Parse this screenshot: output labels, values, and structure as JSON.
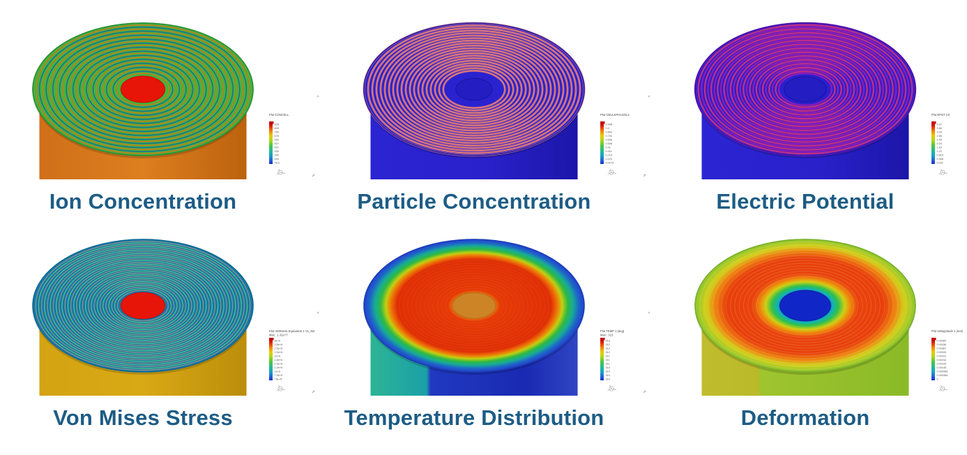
{
  "page": {
    "background": "#ffffff",
    "caption_color": "#1d5c85"
  },
  "colorbar_colors": [
    [
      0,
      "#c80000"
    ],
    [
      0.1,
      "#e83c00"
    ],
    [
      0.2,
      "#f08c00"
    ],
    [
      0.3,
      "#e8cc00"
    ],
    [
      0.42,
      "#a8d818"
    ],
    [
      0.55,
      "#48c648"
    ],
    [
      0.68,
      "#22bb92"
    ],
    [
      0.8,
      "#18a0c8"
    ],
    [
      0.9,
      "#2468d8"
    ],
    [
      1,
      "#1c2cc8"
    ]
  ],
  "panels": [
    {
      "id": "ion-concentration",
      "caption": "Ion Concentration",
      "legend": {
        "title_lines": [
          "Plot CONCELL"
        ],
        "ticks": [
          "935",
          "849",
          "764",
          "678",
          "592",
          "507",
          "421",
          "335",
          "250",
          "164",
          "78.3"
        ]
      },
      "body_stops": [
        [
          0,
          "#cf7019"
        ],
        [
          0.5,
          "#dd7e1f"
        ],
        [
          1,
          "#bc620e"
        ]
      ],
      "disc": {
        "mode": "rings",
        "base": "#45b23d",
        "rim": "#2e9230",
        "rings": {
          "count": 26,
          "inner": 0.24,
          "width": 1.5,
          "colors": [
            "#1a6e96",
            "#c87a1e"
          ]
        },
        "center": {
          "ratio": 0.2,
          "fill": "#e61507",
          "stroke": "#c01005"
        }
      }
    },
    {
      "id": "particle-concentration",
      "caption": "Particle Concentration",
      "legend": {
        "title_lines": [
          "Plot CBULKPHASOL2"
        ],
        "ticks": [
          "0.998",
          "0.9",
          "0.802",
          "0.704",
          "0.606",
          "0.508",
          "0.41",
          "0.311",
          "0.213",
          "0.115",
          "0.0173"
        ]
      },
      "body_stops": [
        [
          0,
          "#2b24d2"
        ],
        [
          0.55,
          "#2a21cb"
        ],
        [
          1,
          "#1c16a8"
        ]
      ],
      "disc": {
        "mode": "rings",
        "base": "#2a22cf",
        "rim": "#231bb0",
        "rings": {
          "count": 20,
          "inner": 0.28,
          "width": 2.8,
          "colors": [
            "#d4737d"
          ]
        },
        "center": {
          "ratio": 0.165,
          "fill": "#241dc2",
          "stroke": "#1a14a0"
        }
      }
    },
    {
      "id": "electric-potential",
      "caption": "Electric Potential",
      "legend": {
        "title_lines": [
          "Plot EPOT (V)"
        ],
        "ticks": [
          "4.07",
          "3.66",
          "3.26",
          "2.85",
          "2.44",
          "2.04",
          "1.63",
          "1.22",
          "0.815",
          "0.408",
          "0.001"
        ]
      },
      "body_stops": [
        [
          0,
          "#2b24d2"
        ],
        [
          0.55,
          "#2a21cb"
        ],
        [
          1,
          "#1c16a8"
        ]
      ],
      "disc": {
        "mode": "rings",
        "base": "#2a1fce",
        "rim": "#3a16ae",
        "rings": {
          "count": 27,
          "inner": 0.24,
          "width": 2.4,
          "colors": [
            "#8c1cb6",
            "#bf2f84"
          ]
        },
        "center": {
          "ratio": 0.19,
          "fill": "#241dc2",
          "stroke": "#1a14a0"
        }
      }
    },
    {
      "id": "von-mises-stress",
      "caption": "Von Mises Stress",
      "legend": {
        "title_lines": [
          "Plot VMStress Equivalent 1 VL_ND",
          "Max : 1.31e+7"
        ],
        "ticks": [
          "3e+6",
          "2.8e+6",
          "2.5e+6",
          "2.3e+6",
          "2e+6",
          "1.8e+6",
          "1.5e+6",
          "1.3e+6",
          "1e+6",
          "7.5e+5",
          "<5e+5"
        ]
      },
      "body_stops": [
        [
          0,
          "#d4a312"
        ],
        [
          0.5,
          "#d9a915"
        ],
        [
          1,
          "#bb8d0a"
        ]
      ],
      "disc": {
        "mode": "rings",
        "base": "#1478a8",
        "rim": "#0f6a96",
        "rings": {
          "count": 30,
          "inner": 0.23,
          "width": 1.3,
          "colors": [
            "#55c186",
            "#90948a"
          ]
        },
        "center": {
          "ratio": 0.2,
          "fill": "#e61507",
          "stroke": "#c01005"
        }
      }
    },
    {
      "id": "temperature-distribution",
      "caption": "Temperature Distribution",
      "legend": {
        "title_lines": [
          "Plot TEMP 1 (deg)",
          "Max : 313"
        ],
        "ticks": [
          "313",
          "312",
          "312",
          "312",
          "311",
          "311",
          "311",
          "310",
          "310",
          "310",
          "310"
        ]
      },
      "body_stops": [
        [
          0,
          "#2db495"
        ],
        [
          0.27,
          "#1ba0a8"
        ],
        [
          0.29,
          "#2138c0"
        ],
        [
          0.75,
          "#1a2ab2"
        ],
        [
          1,
          "#2f45c4"
        ]
      ],
      "disc": {
        "mode": "gradient",
        "rim": "#1c3db8",
        "stops": [
          [
            0,
            "#e98d12"
          ],
          [
            0.17,
            "#e98d12"
          ],
          [
            0.24,
            "#e63a06"
          ],
          [
            0.7,
            "#e02f05"
          ],
          [
            0.76,
            "#ee7d08"
          ],
          [
            0.8,
            "#c3cf10"
          ],
          [
            0.85,
            "#2eb944"
          ],
          [
            0.9,
            "#18ab96"
          ],
          [
            0.95,
            "#1e66c8"
          ],
          [
            1,
            "#2240cc"
          ]
        ],
        "overlay_rings": {
          "count": 12,
          "from": 0.26,
          "to": 0.68,
          "color": "rgba(255,255,255,0.05)",
          "width": 1
        },
        "center": {
          "ratio": 0.195,
          "fill": "#cd8427",
          "stroke": "#b2701e"
        }
      }
    },
    {
      "id": "deformation",
      "caption": "Deformation",
      "legend": {
        "title_lines": [
          "Plot UMagnitude 1 (mm)"
        ],
        "ticks": [
          "0.00484",
          "0.00436",
          "0.00387",
          "0.00339",
          "0.00291",
          "0.00242",
          "0.00194",
          "0.00145",
          "0.000968",
          "0.000484",
          "0"
        ]
      },
      "body_stops": [
        [
          0,
          "#c0bd2e"
        ],
        [
          0.27,
          "#b9ba2a"
        ],
        [
          0.29,
          "#9fc42e"
        ],
        [
          1,
          "#8aba28"
        ]
      ],
      "disc": {
        "mode": "gradient",
        "rim": "#7ab02a",
        "stops": [
          [
            0,
            "#1126c7"
          ],
          [
            0.2,
            "#1126c7"
          ],
          [
            0.25,
            "#12b2b8"
          ],
          [
            0.3,
            "#2ec04e"
          ],
          [
            0.36,
            "#cfcf15"
          ],
          [
            0.41,
            "#ef8b0c"
          ],
          [
            0.48,
            "#e9420b"
          ],
          [
            0.72,
            "#e8400a"
          ],
          [
            0.82,
            "#ee830f"
          ],
          [
            0.9,
            "#d3cf18"
          ],
          [
            1,
            "#8cc62e"
          ]
        ],
        "overlay_rings": {
          "count": 14,
          "from": 0.44,
          "to": 0.96,
          "color": "rgba(255,255,255,0.12)",
          "width": 1.2
        },
        "center": {
          "ratio": 0.23,
          "fill": "#1126c7",
          "stroke": "#0c1c9c"
        }
      }
    }
  ]
}
